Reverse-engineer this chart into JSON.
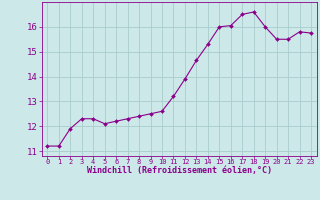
{
  "x": [
    0,
    1,
    2,
    3,
    4,
    5,
    6,
    7,
    8,
    9,
    10,
    11,
    12,
    13,
    14,
    15,
    16,
    17,
    18,
    19,
    20,
    21,
    22,
    23
  ],
  "y": [
    11.2,
    11.2,
    11.9,
    12.3,
    12.3,
    12.1,
    12.2,
    12.3,
    12.4,
    12.5,
    12.6,
    13.2,
    13.9,
    14.65,
    15.3,
    16.0,
    16.05,
    16.5,
    16.6,
    16.0,
    15.5,
    15.5,
    15.8,
    15.75
  ],
  "line_color": "#8B008B",
  "marker": "D",
  "marker_size": 2.0,
  "bg_color": "#cce8e8",
  "grid_color": "#aacccc",
  "xlabel": "Windchill (Refroidissement éolien,°C)",
  "ylabel": "",
  "ylim": [
    10.8,
    17.0
  ],
  "xlim": [
    -0.5,
    23.5
  ],
  "yticks": [
    11,
    12,
    13,
    14,
    15,
    16
  ],
  "xticks": [
    0,
    1,
    2,
    3,
    4,
    5,
    6,
    7,
    8,
    9,
    10,
    11,
    12,
    13,
    14,
    15,
    16,
    17,
    18,
    19,
    20,
    21,
    22,
    23
  ],
  "tick_color": "#8B008B",
  "label_color": "#8B008B",
  "xlabel_fontsize": 6.0,
  "ytick_fontsize": 6.5,
  "xtick_fontsize": 5.0
}
